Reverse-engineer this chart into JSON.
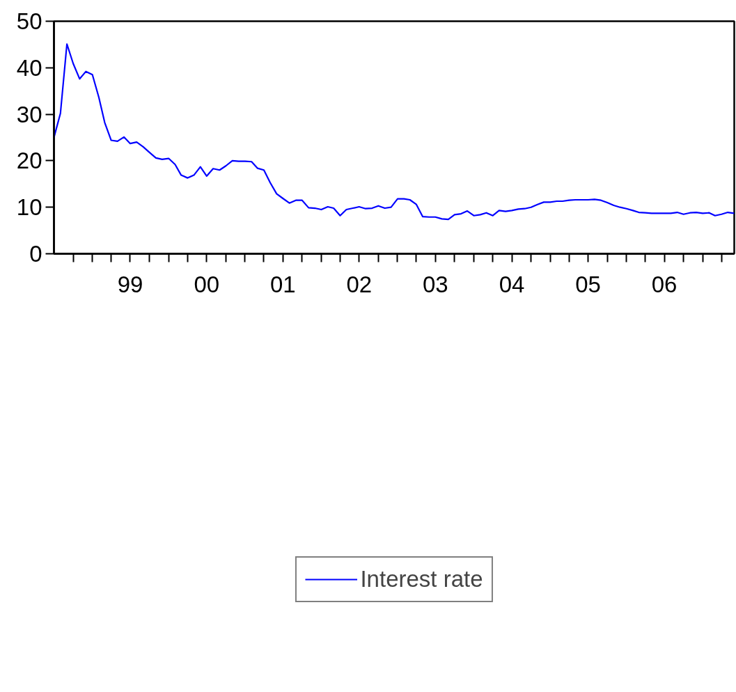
{
  "chart_data": {
    "type": "line",
    "x": [
      "1998-07",
      "1998-08",
      "1998-09",
      "1998-10",
      "1998-11",
      "1998-12",
      "1999-01",
      "1999-02",
      "1999-03",
      "1999-04",
      "1999-05",
      "1999-06",
      "1999-07",
      "1999-08",
      "1999-09",
      "1999-10",
      "1999-11",
      "1999-12",
      "2000-01",
      "2000-02",
      "2000-03",
      "2000-04",
      "2000-05",
      "2000-06",
      "2000-07",
      "2000-08",
      "2000-09",
      "2000-10",
      "2000-11",
      "2000-12",
      "2001-01",
      "2001-02",
      "2001-03",
      "2001-04",
      "2001-05",
      "2001-06",
      "2001-07",
      "2001-08",
      "2001-09",
      "2001-10",
      "2001-11",
      "2001-12",
      "2002-01",
      "2002-02",
      "2002-03",
      "2002-04",
      "2002-05",
      "2002-06",
      "2002-07",
      "2002-08",
      "2002-09",
      "2002-10",
      "2002-11",
      "2002-12",
      "2003-01",
      "2003-02",
      "2003-03",
      "2003-04",
      "2003-05",
      "2003-06",
      "2003-07",
      "2003-08",
      "2003-09",
      "2003-10",
      "2003-11",
      "2003-12",
      "2004-01",
      "2004-02",
      "2004-03",
      "2004-04",
      "2004-05",
      "2004-06",
      "2004-07",
      "2004-08",
      "2004-09",
      "2004-10",
      "2004-11",
      "2004-12",
      "2005-01",
      "2005-02",
      "2005-03",
      "2005-04",
      "2005-05",
      "2005-06",
      "2005-07",
      "2005-08",
      "2005-09",
      "2005-10",
      "2005-11",
      "2005-12",
      "2006-01",
      "2006-02",
      "2006-03",
      "2006-04",
      "2006-05",
      "2006-06",
      "2006-07",
      "2006-08",
      "2006-09",
      "2006-10",
      "2006-11",
      "2006-12",
      "2007-01",
      "2007-02",
      "2007-03",
      "2007-04",
      "2007-05",
      "2007-06"
    ],
    "series": [
      {
        "name": "Interest rate",
        "color": "#0000ff",
        "values": [
          25.0,
          30.2,
          45.1,
          40.9,
          37.6,
          39.2,
          38.5,
          33.6,
          28.2,
          24.4,
          24.2,
          25.1,
          23.7,
          24.0,
          23.0,
          21.8,
          20.6,
          20.3,
          20.5,
          19.2,
          16.9,
          16.3,
          16.9,
          18.7,
          16.7,
          18.3,
          18.0,
          18.9,
          20.0,
          19.9,
          19.9,
          19.8,
          18.4,
          18.0,
          15.3,
          12.9,
          11.9,
          10.9,
          11.5,
          11.5,
          9.9,
          9.8,
          9.5,
          10.1,
          9.8,
          8.2,
          9.5,
          9.8,
          10.1,
          9.7,
          9.8,
          10.3,
          9.8,
          10.0,
          11.8,
          11.8,
          11.6,
          10.6,
          8.0,
          7.9,
          7.9,
          7.5,
          7.4,
          8.4,
          8.6,
          9.2,
          8.2,
          8.4,
          8.8,
          8.2,
          9.3,
          9.1,
          9.3,
          9.6,
          9.7,
          10.0,
          10.6,
          11.1,
          11.1,
          11.3,
          11.3,
          11.5,
          11.6,
          11.6,
          11.6,
          11.7,
          11.5,
          11.0,
          10.4,
          10.0,
          9.7,
          9.3,
          8.9,
          8.8,
          8.7,
          8.7,
          8.7,
          8.7,
          8.9,
          8.5,
          8.8,
          8.9,
          8.7,
          8.8,
          8.2,
          8.5,
          8.9,
          8.7
        ]
      }
    ],
    "xlim": [
      "1998-07",
      "2007-06"
    ],
    "xticks": [
      {
        "value": "1998-10",
        "label": null
      },
      {
        "value": "1999-01",
        "label": null
      },
      {
        "value": "1999-04",
        "label": null
      },
      {
        "value": "1999-07",
        "label": "99"
      },
      {
        "value": "1999-10",
        "label": null
      },
      {
        "value": "2000-01",
        "label": null
      },
      {
        "value": "2000-04",
        "label": null
      },
      {
        "value": "2000-07",
        "label": "00"
      },
      {
        "value": "2000-10",
        "label": null
      },
      {
        "value": "2001-01",
        "label": null
      },
      {
        "value": "2001-04",
        "label": null
      },
      {
        "value": "2001-07",
        "label": "01"
      },
      {
        "value": "2001-10",
        "label": null
      },
      {
        "value": "2002-01",
        "label": null
      },
      {
        "value": "2002-04",
        "label": null
      },
      {
        "value": "2002-07",
        "label": "02"
      },
      {
        "value": "2002-10",
        "label": null
      },
      {
        "value": "2003-01",
        "label": null
      },
      {
        "value": "2003-04",
        "label": null
      },
      {
        "value": "2003-07",
        "label": "03"
      },
      {
        "value": "2003-10",
        "label": null
      },
      {
        "value": "2004-01",
        "label": null
      },
      {
        "value": "2004-04",
        "label": null
      },
      {
        "value": "2004-07",
        "label": "04"
      },
      {
        "value": "2004-10",
        "label": null
      },
      {
        "value": "2005-01",
        "label": null
      },
      {
        "value": "2005-04",
        "label": null
      },
      {
        "value": "2005-07",
        "label": "05"
      },
      {
        "value": "2005-10",
        "label": null
      },
      {
        "value": "2006-01",
        "label": null
      },
      {
        "value": "2006-04",
        "label": null
      },
      {
        "value": "2006-07",
        "label": "06"
      },
      {
        "value": "2006-10",
        "label": null
      },
      {
        "value": "2007-01",
        "label": null
      },
      {
        "value": "2007-04",
        "label": null
      }
    ],
    "ylim": [
      0,
      50
    ],
    "yticks": [
      0,
      10,
      20,
      30,
      40,
      50
    ],
    "grid": false,
    "legend": "bottom",
    "marker": "none",
    "line_style": "solid"
  }
}
